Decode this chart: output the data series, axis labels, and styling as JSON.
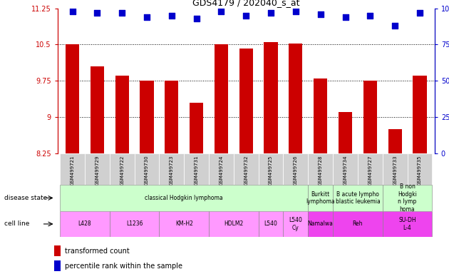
{
  "title": "GDS4179 / 202040_s_at",
  "samples": [
    "GSM499721",
    "GSM499729",
    "GSM499722",
    "GSM499730",
    "GSM499723",
    "GSM499731",
    "GSM499724",
    "GSM499732",
    "GSM499725",
    "GSM499726",
    "GSM499728",
    "GSM499734",
    "GSM499727",
    "GSM499733",
    "GSM499735"
  ],
  "transformed_count": [
    10.5,
    10.05,
    9.85,
    9.75,
    9.75,
    9.3,
    10.5,
    10.42,
    10.55,
    10.52,
    9.8,
    9.1,
    9.75,
    8.75,
    9.85
  ],
  "percentile_rank": [
    98,
    97,
    97,
    94,
    95,
    93,
    98,
    95,
    97,
    98,
    96,
    94,
    95,
    88,
    97
  ],
  "ylim_left": [
    8.25,
    11.25
  ],
  "ylim_right": [
    0,
    100
  ],
  "yticks_left": [
    8.25,
    9.0,
    9.75,
    10.5,
    11.25
  ],
  "yticks_right": [
    0,
    25,
    50,
    75,
    100
  ],
  "ytick_labels_left": [
    "8.25",
    "9",
    "9.75",
    "10.5",
    "11.25"
  ],
  "ytick_labels_right": [
    "0",
    "25",
    "50",
    "75",
    "100%"
  ],
  "dotted_lines": [
    9.0,
    9.75,
    10.5
  ],
  "bar_color": "#cc0000",
  "dot_color": "#0000cc",
  "disease_state_groups": [
    {
      "label": "classical Hodgkin lymphoma",
      "start": 0,
      "end": 9,
      "color": "#ccffcc"
    },
    {
      "label": "Burkitt\nlymphoma",
      "start": 10,
      "end": 10,
      "color": "#ccffcc"
    },
    {
      "label": "B acute lympho\nblastic leukemia",
      "start": 11,
      "end": 12,
      "color": "#ccffcc"
    },
    {
      "label": "B non\nHodgki\nn lymp\nhoma",
      "start": 13,
      "end": 14,
      "color": "#ccffcc"
    }
  ],
  "cell_line_groups": [
    {
      "label": "L428",
      "start": 0,
      "end": 1,
      "color": "#ff99ff"
    },
    {
      "label": "L1236",
      "start": 2,
      "end": 3,
      "color": "#ff99ff"
    },
    {
      "label": "KM-H2",
      "start": 4,
      "end": 5,
      "color": "#ff99ff"
    },
    {
      "label": "HDLM2",
      "start": 6,
      "end": 7,
      "color": "#ff99ff"
    },
    {
      "label": "L540",
      "start": 8,
      "end": 8,
      "color": "#ff99ff"
    },
    {
      "label": "L540\nCy",
      "start": 9,
      "end": 9,
      "color": "#ff99ff"
    },
    {
      "label": "Namalwa",
      "start": 10,
      "end": 10,
      "color": "#ee44ee"
    },
    {
      "label": "Reh",
      "start": 11,
      "end": 12,
      "color": "#ee44ee"
    },
    {
      "label": "SU-DH\nL-4",
      "start": 13,
      "end": 14,
      "color": "#ee44ee"
    }
  ],
  "bg_color": "#ffffff",
  "bar_width": 0.55,
  "dot_size": 30,
  "tick_label_fontsize": 7,
  "axis_label_color_left": "#cc0000",
  "axis_label_color_right": "#0000cc",
  "table_bg": "#d0d0d0"
}
